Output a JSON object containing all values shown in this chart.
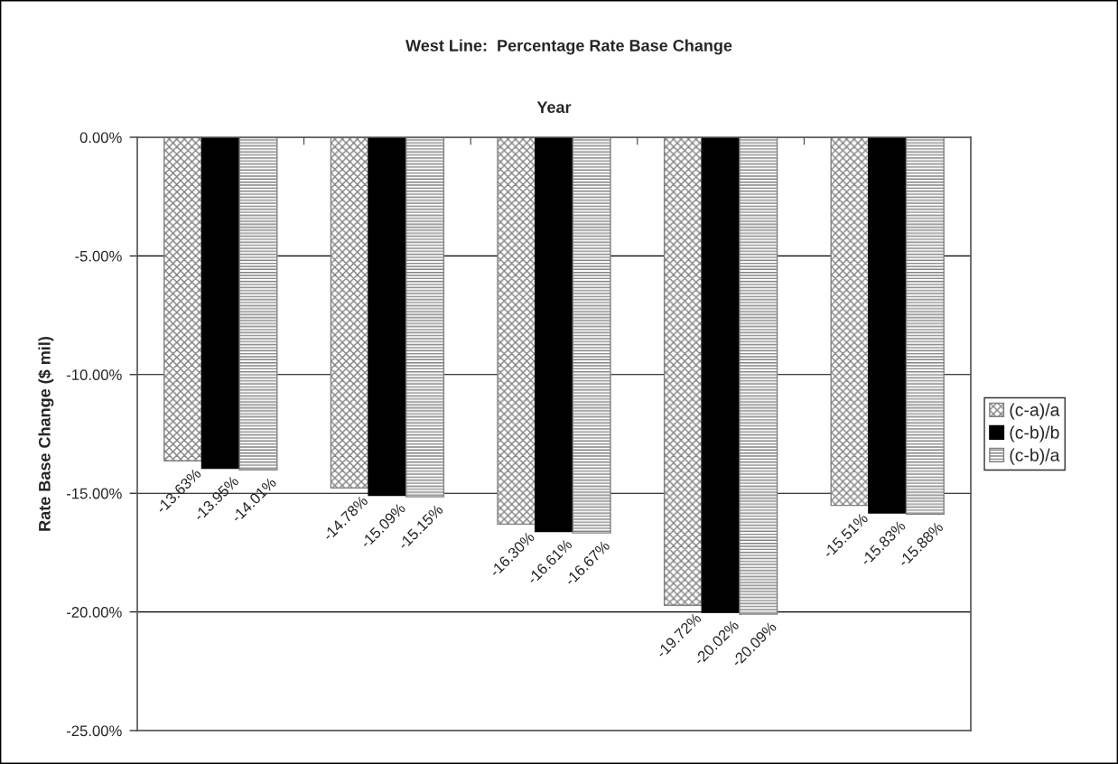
{
  "chart_data": {
    "type": "bar",
    "title": "West Line:  Percentage Rate Base Change",
    "xlabel": "Year",
    "ylabel": "Rate Base Change ($ mil)",
    "categories": [
      null,
      null,
      null,
      null,
      null
    ],
    "series": [
      {
        "name": "(c-a)/a",
        "color": "#808080",
        "values": [
          -13.63,
          -14.78,
          -16.3,
          -19.72,
          -15.51
        ],
        "value_labels": [
          "-13.63%",
          "-14.78%",
          "-16.30%",
          "-19.72%",
          "-15.51%"
        ]
      },
      {
        "name": "(c-b)/b",
        "color": "#000000",
        "values": [
          -13.95,
          -15.09,
          -16.61,
          -20.02,
          -15.83
        ],
        "value_labels": [
          "-13.95%",
          "-15.09%",
          "-16.61%",
          "-20.02%",
          "-15.83%"
        ]
      },
      {
        "name": "(c-b)/a",
        "color": "#808080",
        "values": [
          -14.01,
          -15.15,
          -16.67,
          -20.09,
          -15.88
        ],
        "value_labels": [
          "-14.01%",
          "-15.15%",
          "-16.67%",
          "-20.09%",
          "-15.88%"
        ]
      }
    ],
    "ylim": [
      -25,
      0
    ],
    "yticks": [
      {
        "value": 0,
        "label": "0.00%"
      },
      {
        "value": -5,
        "label": "-5.00%"
      },
      {
        "value": -10,
        "label": "-10.00%"
      },
      {
        "value": -15,
        "label": "-15.00%"
      },
      {
        "value": -20,
        "label": "-20.00%"
      },
      {
        "value": -25,
        "label": "-25.00%"
      }
    ],
    "grid": "y",
    "legend": "right"
  }
}
